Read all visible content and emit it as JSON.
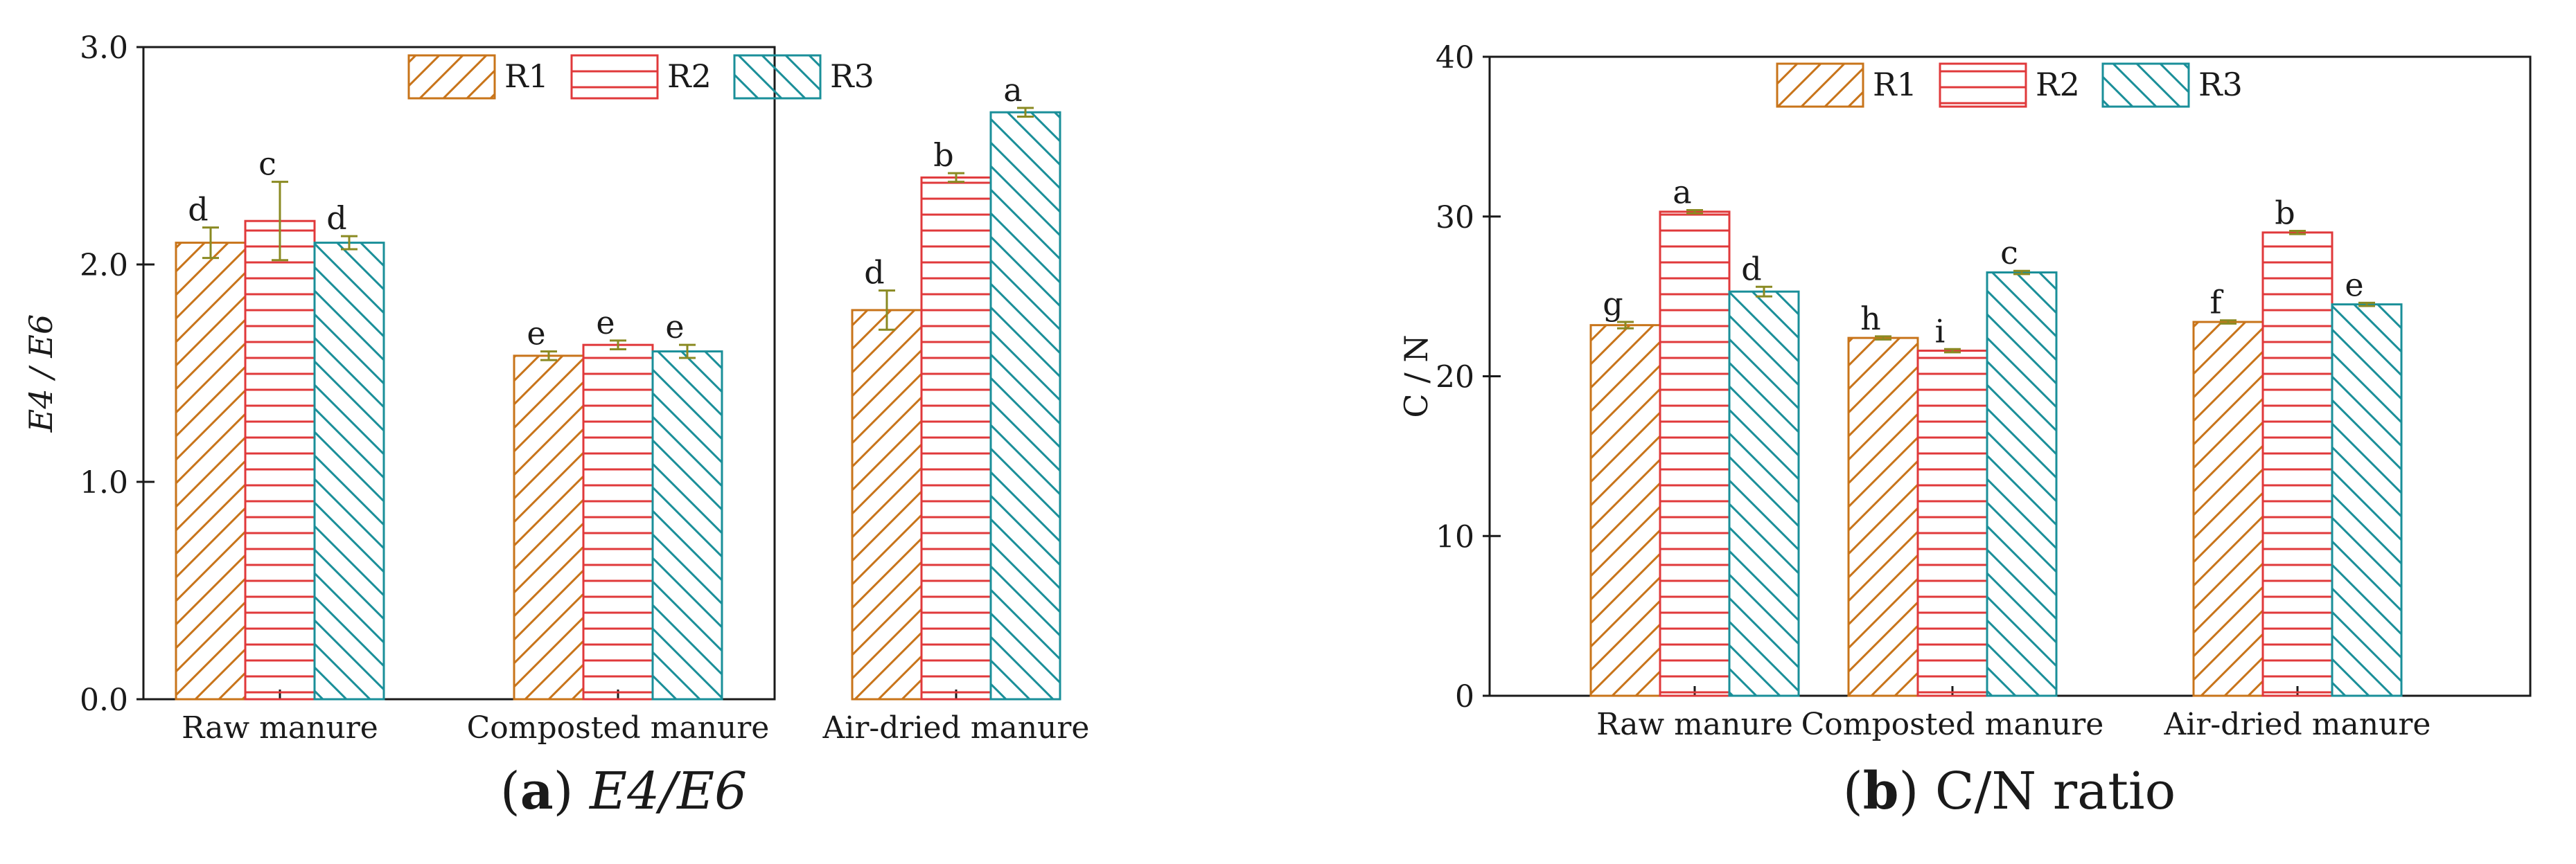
{
  "chart_data": [
    {
      "type": "bar",
      "panel": "a",
      "caption_letter": "a",
      "caption_text": "E4/E6",
      "categories": [
        "Raw manure",
        "Composted manure",
        "Air-dried  manure"
      ],
      "ylabel": "E4 / E6",
      "ylim": [
        0,
        3.0
      ],
      "yticks": [
        "0.0",
        "1.0",
        "2.0",
        "3.0"
      ],
      "ytick_values": [
        0,
        1,
        2,
        3
      ],
      "legend": [
        "R1",
        "R2",
        "R3"
      ],
      "legend_position": "top-center",
      "series": [
        {
          "name": "R1",
          "values": [
            2.1,
            1.58,
            1.79
          ],
          "errors": [
            0.07,
            0.02,
            0.09
          ],
          "letters": [
            "d",
            "e",
            "d"
          ]
        },
        {
          "name": "R2",
          "values": [
            2.2,
            1.63,
            2.4
          ],
          "errors": [
            0.18,
            0.02,
            0.02
          ],
          "letters": [
            "c",
            "e",
            "b"
          ]
        },
        {
          "name": "R3",
          "values": [
            2.1,
            1.6,
            2.7
          ],
          "errors": [
            0.03,
            0.03,
            0.02
          ],
          "letters": [
            "d",
            "e",
            "a"
          ]
        }
      ]
    },
    {
      "type": "bar",
      "panel": "b",
      "caption_letter": "b",
      "caption_text": "C/N ratio",
      "categories": [
        "Raw manure",
        "Composted manure",
        "Air-dried  manure"
      ],
      "ylabel": "C / N",
      "ylim": [
        0,
        40
      ],
      "yticks": [
        "0",
        "10",
        "20",
        "30",
        "40"
      ],
      "ytick_values": [
        0,
        10,
        20,
        30,
        40
      ],
      "legend": [
        "R1",
        "R2",
        "R3"
      ],
      "legend_position": "top-center",
      "series": [
        {
          "name": "R1",
          "values": [
            23.2,
            22.4,
            23.4
          ],
          "errors": [
            0.2,
            0.1,
            0.1
          ],
          "letters": [
            "g",
            "h",
            "f"
          ]
        },
        {
          "name": "R2",
          "values": [
            30.3,
            21.6,
            29.0
          ],
          "errors": [
            0.1,
            0.1,
            0.1
          ],
          "letters": [
            "a",
            "i",
            "b"
          ]
        },
        {
          "name": "R3",
          "values": [
            25.3,
            26.5,
            24.5
          ],
          "errors": [
            0.3,
            0.1,
            0.1
          ],
          "letters": [
            "d",
            "c",
            "e"
          ]
        }
      ]
    }
  ],
  "colors": {
    "R1": "#c8741a",
    "R2": "#e0393b",
    "R3": "#1a8f99",
    "errorbar": "#8a8a22",
    "axis": "#1a1a1a"
  }
}
